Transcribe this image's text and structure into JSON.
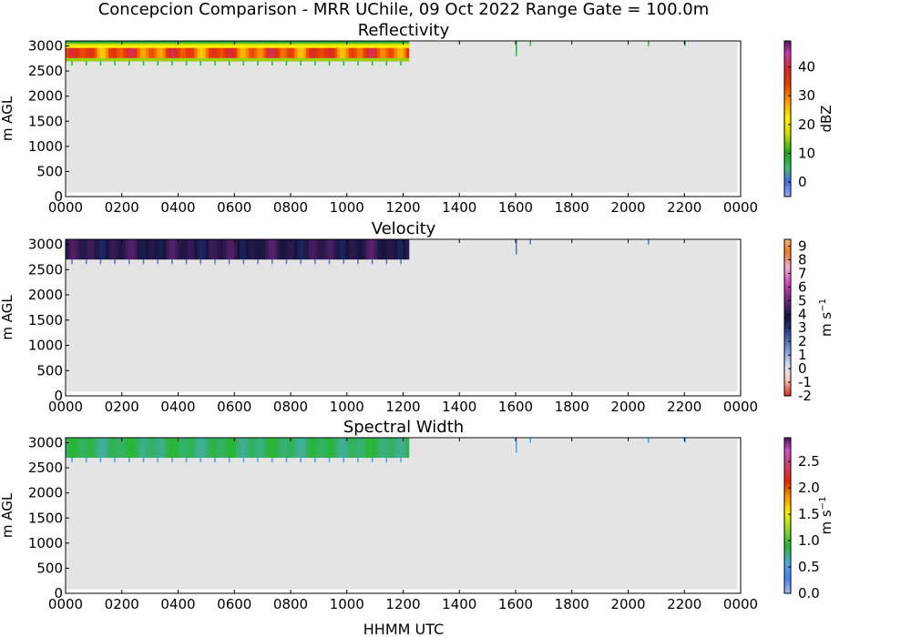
{
  "figure": {
    "title": "Concepcion Comparison - MRR UChile, 09 Oct 2022 Range Gate = 100.0m",
    "xlabel": "HHMM UTC"
  },
  "colors": {
    "background_fill": "#e4e4e4",
    "no_data": "#ffffff"
  },
  "chart_data": [
    {
      "type": "heatmap",
      "title": "Reflectivity",
      "ylabel": "m AGL",
      "x_ticks": [
        "0000",
        "0200",
        "0400",
        "0600",
        "0800",
        "1000",
        "1200",
        "1400",
        "1600",
        "1800",
        "2000",
        "2200",
        "0000"
      ],
      "x_range_hours": [
        0,
        24
      ],
      "y_ticks": [
        0,
        500,
        1000,
        1500,
        2000,
        2500,
        3000
      ],
      "y_range": [
        0,
        3100
      ],
      "colorbar": {
        "label": "dBZ",
        "ticks": [
          "0",
          "10",
          "20",
          "30",
          "40"
        ],
        "range": [
          -5,
          49
        ]
      },
      "echo": {
        "start_hour": 0.0,
        "end_hour": 12.2,
        "base_m": 2700,
        "top_m": 3100,
        "core_value": 33,
        "edge_value": 8
      },
      "sparse_echoes": [
        {
          "hour": 16.0,
          "base_m": 2800,
          "top_m": 3100
        },
        {
          "hour": 16.5,
          "base_m": 3000,
          "top_m": 3100
        },
        {
          "hour": 20.7,
          "base_m": 3000,
          "top_m": 3100
        },
        {
          "hour": 22.0,
          "base_m": 3000,
          "top_m": 3100
        }
      ]
    },
    {
      "type": "heatmap",
      "title": "Velocity",
      "ylabel": "m AGL",
      "x_ticks": [
        "0000",
        "0200",
        "0400",
        "0600",
        "0800",
        "1000",
        "1200",
        "1400",
        "1600",
        "1800",
        "2000",
        "2200",
        "0000"
      ],
      "x_range_hours": [
        0,
        24
      ],
      "y_ticks": [
        0,
        500,
        1000,
        1500,
        2000,
        2500,
        3000
      ],
      "y_range": [
        0,
        3100
      ],
      "colorbar": {
        "label": "m s",
        "label_superscript": "−1",
        "ticks": [
          "-2",
          "-1",
          "0",
          "1",
          "2",
          "3",
          "4",
          "5",
          "6",
          "7",
          "8",
          "9"
        ],
        "range": [
          -2,
          9.5
        ]
      },
      "echo": {
        "start_hour": 0.0,
        "end_hour": 12.2,
        "base_m": 2700,
        "top_m": 3100,
        "core_value": 4,
        "edge_value": 2
      },
      "sparse_echoes": [
        {
          "hour": 16.0,
          "base_m": 2800,
          "top_m": 3100
        },
        {
          "hour": 16.5,
          "base_m": 3000,
          "top_m": 3100
        },
        {
          "hour": 20.7,
          "base_m": 3000,
          "top_m": 3100
        }
      ]
    },
    {
      "type": "heatmap",
      "title": "Spectral Width",
      "ylabel": "m AGL",
      "x_ticks": [
        "0000",
        "0200",
        "0400",
        "0600",
        "0800",
        "1000",
        "1200",
        "1400",
        "1600",
        "1800",
        "2000",
        "2200",
        "0000"
      ],
      "x_range_hours": [
        0,
        24
      ],
      "y_ticks": [
        0,
        500,
        1000,
        1500,
        2000,
        2500,
        3000
      ],
      "y_range": [
        0,
        3100
      ],
      "colorbar": {
        "label": "m s",
        "label_superscript": "−1",
        "ticks": [
          "0.0",
          "0.5",
          "1.0",
          "1.5",
          "2.0",
          "2.5"
        ],
        "range": [
          0,
          2.95
        ]
      },
      "echo": {
        "start_hour": 0.0,
        "end_hour": 12.2,
        "base_m": 2700,
        "top_m": 3100,
        "core_value": 0.8,
        "edge_value": 0.5
      },
      "sparse_echoes": [
        {
          "hour": 16.0,
          "base_m": 2800,
          "top_m": 3100
        },
        {
          "hour": 16.5,
          "base_m": 3000,
          "top_m": 3100
        },
        {
          "hour": 20.7,
          "base_m": 3000,
          "top_m": 3100
        },
        {
          "hour": 22.0,
          "base_m": 3000,
          "top_m": 3100
        }
      ]
    }
  ]
}
